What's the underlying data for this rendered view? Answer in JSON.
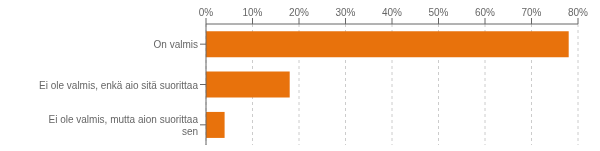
{
  "chart_data": {
    "type": "bar",
    "orientation": "horizontal",
    "categories": [
      "Ei ole valmis, mutta aion suorittaa\nsen",
      "Ei ole valmis, enkä aio sitä suorittaa",
      "On valmis"
    ],
    "values": [
      4,
      18,
      78
    ],
    "color": "#E8720C",
    "xlim": [
      0,
      80
    ],
    "xticks": [
      {
        "value": 0,
        "label": "0%"
      },
      {
        "value": 10,
        "label": "10%"
      },
      {
        "value": 20,
        "label": "20%"
      },
      {
        "value": 30,
        "label": "30%"
      },
      {
        "value": 40,
        "label": "40%"
      },
      {
        "value": 50,
        "label": "50%"
      },
      {
        "value": 60,
        "label": "60%"
      },
      {
        "value": 70,
        "label": "70%"
      },
      {
        "value": 80,
        "label": "80%"
      }
    ],
    "grid": true
  }
}
